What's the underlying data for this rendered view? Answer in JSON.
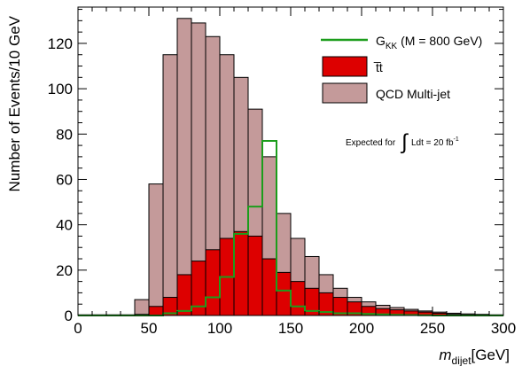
{
  "chart_data": {
    "type": "histogram",
    "bin_width": 10,
    "x_range": [
      0,
      300
    ],
    "y_range": [
      0,
      136
    ],
    "x_ticks": [
      0,
      50,
      100,
      150,
      200,
      250,
      300
    ],
    "y_ticks": [
      0,
      20,
      40,
      60,
      80,
      100,
      120
    ],
    "x_tick_labels": [
      "0",
      "50",
      "100",
      "150",
      "200",
      "250",
      "300"
    ],
    "y_tick_labels": [
      "0",
      "20",
      "40",
      "60",
      "80",
      "100",
      "120"
    ],
    "xlabel": {
      "symbol": "m",
      "subscript": "dijet",
      "unit": "[GeV]"
    },
    "ylabel": "Number of Events/10 GeV",
    "legend_position": "top-right",
    "series": [
      {
        "name": "QCD Multi-jet",
        "kind": "filled",
        "color": "#c49a9a",
        "values": [
          0.3,
          0.3,
          0.3,
          0.3,
          7,
          58,
          115,
          131,
          129,
          123,
          115,
          105,
          91,
          70,
          45,
          34,
          26,
          18,
          12,
          8,
          6,
          4.5,
          3.5,
          2.7,
          2,
          1.5,
          1,
          0.7,
          0.5,
          0.3
        ]
      },
      {
        "name": "t̅t",
        "kind": "filled",
        "color": "#dd0000",
        "values": [
          0,
          0,
          0,
          0,
          0.5,
          4,
          8,
          18,
          24,
          29,
          34,
          37,
          35,
          25,
          19,
          15,
          12,
          10,
          8,
          6,
          4,
          3,
          2.5,
          2,
          1.5,
          1,
          0.5,
          0.3,
          0.2,
          0.1
        ]
      },
      {
        "name": "G_KK (M = 800 GeV)",
        "kind": "line",
        "color": "#1c9d1c",
        "values": [
          0,
          0,
          0,
          0,
          0,
          0,
          1,
          2,
          4,
          8,
          17,
          36,
          48,
          77,
          11,
          4,
          2,
          1.5,
          1,
          1,
          0.7,
          0.5,
          0.3,
          0.2,
          0.1,
          0,
          0,
          0,
          0,
          0
        ]
      }
    ],
    "legend": [
      {
        "label_main": "G",
        "label_sub": "KK",
        "label_rest": " (M = 800 GeV)",
        "kind": "line",
        "color": "#1c9d1c"
      },
      {
        "label_main": "t̅t",
        "label_sub": "",
        "label_rest": "",
        "kind": "filled",
        "color": "#dd0000"
      },
      {
        "label_main": "QCD Multi-jet",
        "label_sub": "",
        "label_rest": "",
        "kind": "filled",
        "color": "#c49a9a"
      }
    ],
    "annotation": {
      "prefix": "Expected for",
      "integral": "Ldt = 20 fb",
      "superscript": "-1"
    }
  }
}
